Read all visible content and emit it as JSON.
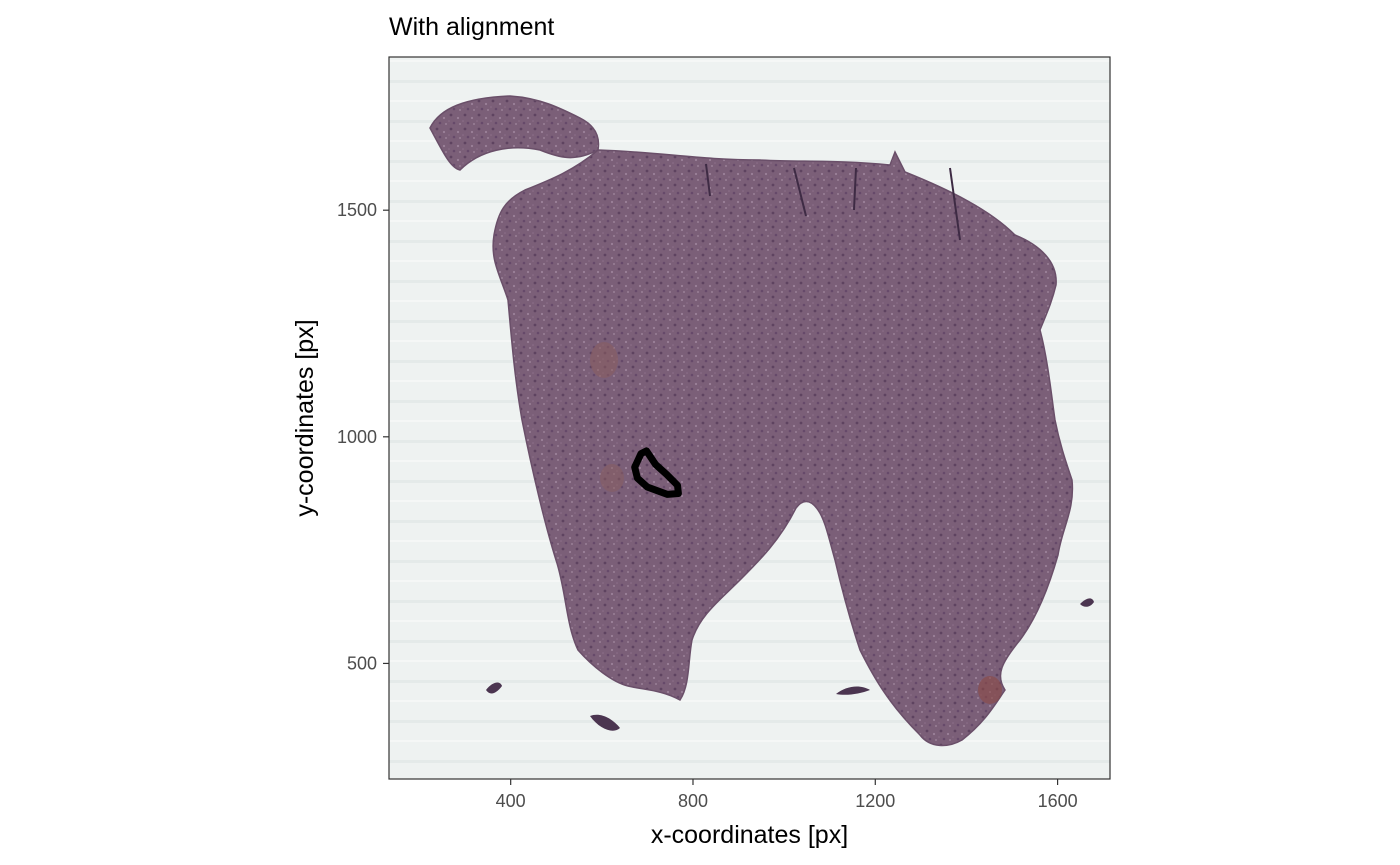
{
  "chart_data": {
    "type": "scatter",
    "title": "With alignment",
    "xlabel": "x-coordinates [px]",
    "ylabel": "y-coordinates [px]",
    "xlim": [
      133,
      1715
    ],
    "ylim": [
      245,
      1838
    ],
    "xticks": [
      400,
      800,
      1200,
      1600
    ],
    "yticks": [
      500,
      1000,
      1500
    ],
    "grid": false,
    "background_image": "histology-tissue-section",
    "outline_color": "#000000",
    "tissue_color": "#7b5f78",
    "panel_color": "#eef2f1",
    "outline_points": {
      "x": [
        698,
        718,
        742,
        766,
        768,
        744,
        700,
        678,
        672,
        686,
        698
      ],
      "y": [
        969,
        939,
        917,
        893,
        875,
        873,
        889,
        909,
        933,
        963,
        969
      ]
    }
  }
}
